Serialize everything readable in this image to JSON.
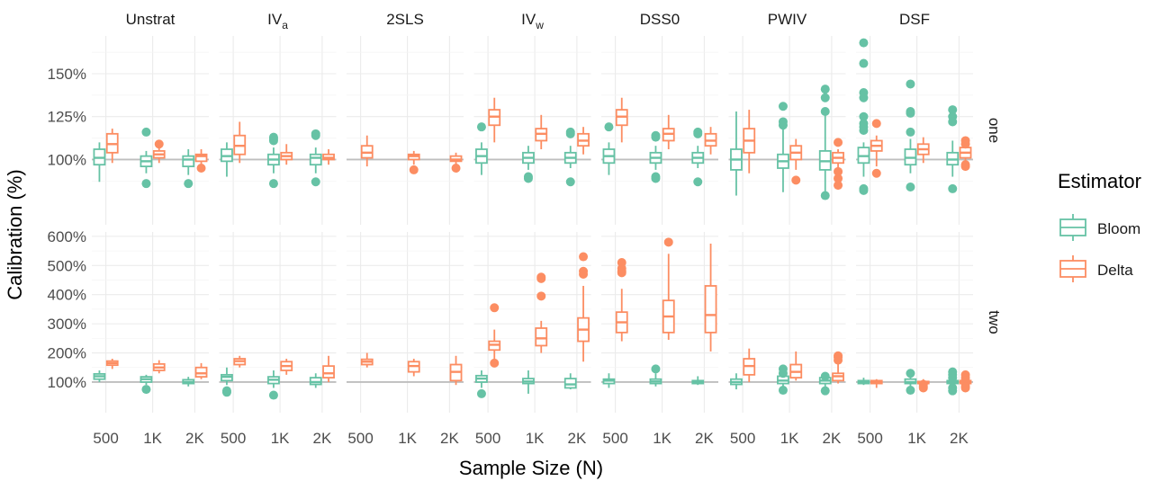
{
  "chart_data": {
    "type": "box",
    "ylabel": "Calibration (%)",
    "xlabel": "Sample Size (N)",
    "legend": {
      "title": "Estimator",
      "position": "right",
      "entries": [
        {
          "name": "Bloom",
          "color": "#66c2a5"
        },
        {
          "name": "Delta",
          "color": "#fc8d62"
        }
      ]
    },
    "columns": [
      {
        "key": "unstrat",
        "label": "Unstrat"
      },
      {
        "key": "iva",
        "label": "IV",
        "sub": "a"
      },
      {
        "key": "2sls",
        "label": "2SLS"
      },
      {
        "key": "ivw",
        "label": "IV",
        "sub": "w"
      },
      {
        "key": "dss0",
        "label": "DSS0"
      },
      {
        "key": "pwiv",
        "label": "PWIV"
      },
      {
        "key": "dsf",
        "label": "DSF"
      }
    ],
    "rows": [
      {
        "key": "one",
        "label": "one",
        "ylim": [
          62,
          172
        ],
        "reference": 100,
        "ticks": [
          {
            "v": 100,
            "l": "100%"
          },
          {
            "v": 125,
            "l": "125%"
          },
          {
            "v": 150,
            "l": "150%"
          }
        ],
        "minor": [
          87.5,
          112.5,
          137.5,
          162.5
        ]
      },
      {
        "key": "two",
        "label": "two",
        "ylim": [
          -5,
          615
        ],
        "reference": 100,
        "ticks": [
          {
            "v": 100,
            "l": "100%"
          },
          {
            "v": 200,
            "l": "200%"
          },
          {
            "v": 300,
            "l": "300%"
          },
          {
            "v": 400,
            "l": "400%"
          },
          {
            "v": 500,
            "l": "500%"
          },
          {
            "v": 600,
            "l": "600%"
          }
        ],
        "minor": [
          150,
          250,
          350,
          450,
          550
        ]
      }
    ],
    "categories": [
      "500",
      "1K",
      "2K"
    ],
    "boxes": {
      "one": {
        "unstrat": {
          "Bloom": [
            [
              87,
              97,
              101,
              106,
              110,
              []
            ],
            [
              92,
              96,
              99,
              102,
              105,
              [
                116,
                86
              ]
            ],
            [
              91,
              96,
              100,
              102,
              106,
              [
                86
              ]
            ]
          ],
          "Delta": [
            [
              98,
              104,
              109,
              115,
              118,
              []
            ],
            [
              98,
              101,
              103,
              105,
              107,
              [
                109
              ]
            ],
            [
              96,
              99,
              102,
              103,
              106,
              [
                95
              ]
            ]
          ]
        },
        "iva": {
          "Bloom": [
            [
              90,
              99,
              102,
              106,
              110,
              []
            ],
            [
              92,
              97,
              100,
              103,
              107,
              [
                113,
                112,
                111,
                86
              ]
            ],
            [
              92,
              97,
              101,
              103,
              107,
              [
                115,
                114,
                87
              ]
            ]
          ],
          "Delta": [
            [
              98,
              103,
              108,
              114,
              122,
              []
            ],
            [
              97,
              100,
              102,
              104,
              109,
              []
            ],
            [
              97,
              100,
              101,
              103,
              106,
              []
            ]
          ]
        },
        "2sls": {
          "Bloom": [],
          "Delta": [
            [
              96,
              101,
              104,
              108,
              114,
              []
            ],
            [
              97,
              100,
              102,
              103,
              105,
              [
                94
              ]
            ],
            [
              96,
              99,
              100,
              102,
              104,
              [
                95
              ]
            ]
          ]
        },
        "ivw": {
          "Bloom": [
            [
              91,
              98,
              102,
              106,
              110,
              [
                119
              ]
            ],
            [
              94,
              98,
              101,
              104,
              108,
              [
                90,
                89
              ]
            ],
            [
              95,
              98,
              101,
              104,
              108,
              [
                116,
                115,
                87
              ]
            ]
          ],
          "Delta": [
            [
              110,
              120,
              125,
              129,
              136,
              []
            ],
            [
              106,
              111,
              115,
              118,
              126,
              []
            ],
            [
              103,
              108,
              111,
              115,
              119,
              []
            ]
          ]
        },
        "dss0": {
          "Bloom": [
            [
              91,
              98,
              102,
              106,
              110,
              [
                119
              ]
            ],
            [
              94,
              98,
              101,
              104,
              108,
              [
                114,
                113,
                90,
                89
              ]
            ],
            [
              95,
              98,
              101,
              104,
              108,
              [
                116,
                115,
                87
              ]
            ]
          ],
          "Delta": [
            [
              110,
              120,
              125,
              129,
              136,
              []
            ],
            [
              106,
              111,
              115,
              118,
              126,
              []
            ],
            [
              103,
              108,
              111,
              115,
              119,
              []
            ]
          ]
        },
        "pwiv": {
          "Bloom": [
            [
              79,
              94,
              100,
              106,
              128,
              []
            ],
            [
              81,
              95,
              99,
              103,
              120,
              [
                131,
                122,
                120
              ]
            ],
            [
              81,
              94,
              99,
              105,
              126,
              [
                141,
                136,
                128,
                79
              ]
            ]
          ],
          "Delta": [
            [
              92,
              104,
              111,
              118,
              129,
              []
            ],
            [
              94,
              100,
              104,
              108,
              112,
              [
                88
              ]
            ],
            [
              95,
              98,
              101,
              104,
              106,
              [
                110,
                93,
                89,
                85
              ]
            ]
          ]
        },
        "dsf": {
          "Bloom": [
            [
              90,
              98,
              102,
              107,
              110,
              [
                168,
                156,
                139,
                136,
                125,
                121,
                119,
                117,
                83,
                82
              ]
            ],
            [
              92,
              97,
              101,
              106,
              112,
              [
                144,
                128,
                127,
                116,
                84
              ]
            ],
            [
              90,
              97,
              100,
              104,
              111,
              [
                129,
                125,
                122,
                83
              ]
            ]
          ],
          "Delta": [
            [
              96,
              105,
              108,
              111,
              114,
              [
                121,
                92
              ]
            ],
            [
              98,
              103,
              106,
              109,
              113,
              []
            ],
            [
              99,
              101,
              104,
              107,
              108,
              [
                111,
                109,
                97,
                96
              ]
            ]
          ]
        }
      },
      "two": {
        "unstrat": {
          "Bloom": [
            [
              100,
              110,
              120,
              128,
              140,
              []
            ],
            [
              90,
              100,
              110,
              118,
              125,
              [
                75
              ]
            ],
            [
              85,
              95,
              100,
              108,
              118,
              []
            ]
          ],
          "Delta": [
            [
              145,
              158,
              165,
              172,
              180,
              []
            ],
            [
              130,
              140,
              150,
              162,
              175,
              []
            ],
            [
              110,
              118,
              130,
              150,
              165,
              []
            ]
          ]
        },
        "iva": {
          "Bloom": [
            [
              90,
              105,
              118,
              125,
              150,
              [
                70,
                65
              ]
            ],
            [
              80,
              95,
              108,
              118,
              140,
              [
                55
              ]
            ],
            [
              80,
              92,
              100,
              115,
              130,
              []
            ]
          ],
          "Delta": [
            [
              150,
              160,
              172,
              180,
              190,
              []
            ],
            [
              125,
              140,
              155,
              170,
              180,
              []
            ],
            [
              100,
              115,
              130,
              155,
              190,
              []
            ]
          ]
        },
        "2sls": {
          "Bloom": [],
          "Delta": [
            [
              150,
              160,
              170,
              178,
              200,
              []
            ],
            [
              120,
              135,
              155,
              170,
              180,
              []
            ],
            [
              90,
              105,
              135,
              160,
              190,
              []
            ]
          ]
        },
        "ivw": {
          "Bloom": [
            [
              80,
              100,
              112,
              122,
              140,
              [
                60
              ]
            ],
            [
              60,
              95,
              102,
              112,
              140,
              []
            ],
            [
              75,
              80,
              92,
              112,
              130,
              []
            ]
          ],
          "Delta": [
            [
              180,
              210,
              228,
              240,
              280,
              [
                355,
                165
              ]
            ],
            [
              200,
              225,
              250,
              285,
              310,
              [
                460,
                455,
                395
              ]
            ],
            [
              170,
              240,
              280,
              320,
              430,
              [
                530,
                480,
                470
              ]
            ]
          ]
        },
        "dss0": {
          "Bloom": [
            [
              80,
              95,
              105,
              110,
              130,
              []
            ],
            [
              85,
              95,
              102,
              110,
              130,
              [
                145
              ]
            ],
            [
              90,
              95,
              100,
              105,
              120,
              []
            ]
          ],
          "Delta": [
            [
              240,
              270,
              305,
              340,
              420,
              [
                510,
                490,
                480,
                475
              ]
            ],
            [
              245,
              270,
              325,
              380,
              540,
              [
                580
              ]
            ],
            [
              205,
              270,
              330,
              430,
              575,
              []
            ]
          ]
        },
        "pwiv": {
          "Bloom": [
            [
              75,
              92,
              100,
              110,
              130,
              []
            ],
            [
              80,
              95,
              105,
              120,
              135,
              [
                145,
                130,
                72
              ]
            ],
            [
              75,
              95,
              105,
              115,
              125,
              [
                120,
                70
              ]
            ]
          ],
          "Delta": [
            [
              100,
              125,
              155,
              180,
              215,
              []
            ],
            [
              105,
              115,
              135,
              160,
              205,
              []
            ],
            [
              95,
              105,
              120,
              130,
              175,
              [
                190,
                185,
                175
              ]
            ]
          ]
        },
        "dsf": {
          "Bloom": [
            [
              90,
              95,
              100,
              105,
              115,
              []
            ],
            [
              80,
              95,
              100,
              110,
              120,
              [
                130,
                72
              ]
            ],
            [
              80,
              95,
              100,
              105,
              120,
              [
                135,
                125,
                115,
                80,
                70
              ]
            ]
          ],
          "Delta": [
            [
              80,
              95,
              100,
              105,
              110,
              []
            ],
            [
              90,
              95,
              98,
              102,
              110,
              [
                92,
                85,
                80
              ]
            ],
            [
              85,
              95,
              100,
              105,
              110,
              [
                125,
                115,
                105,
                95,
                85,
                80
              ]
            ]
          ]
        }
      }
    }
  }
}
